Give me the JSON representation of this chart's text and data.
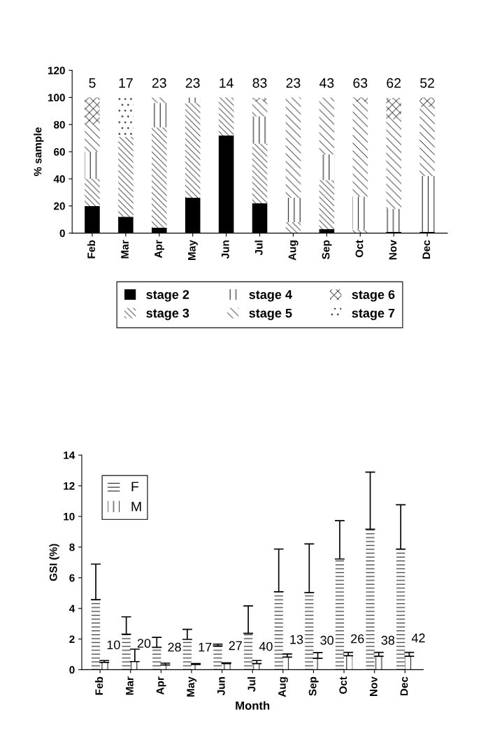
{
  "chart_data": [
    {
      "type": "bar",
      "stacked": true,
      "ylabel": "% sample",
      "categories": [
        "Feb",
        "Mar",
        "Apr",
        "May",
        "Jun",
        "Jul",
        "Aug",
        "Sep",
        "Oct",
        "Nov",
        "Dec"
      ],
      "series": [
        {
          "name": "stage 2",
          "color": "#000000",
          "values": [
            20,
            12,
            4,
            26,
            72,
            22,
            null,
            3,
            null,
            1,
            1
          ]
        },
        {
          "name": "stage 3",
          "color": "#ffffff",
          "values": [
            20,
            59,
            74,
            70,
            28,
            44,
            8,
            36,
            3,
            null,
            null
          ]
        },
        {
          "name": "stage 4",
          "color": "#ffffff",
          "values": [
            20,
            null,
            18,
            4,
            null,
            20,
            18,
            19,
            24,
            17,
            41
          ]
        },
        {
          "name": "stage 5",
          "color": "#ffffff",
          "values": [
            20,
            null,
            4,
            null,
            null,
            11,
            74,
            42,
            70,
            66,
            51
          ]
        },
        {
          "name": "stage 6",
          "color": "#ffffff",
          "values": [
            20,
            null,
            null,
            null,
            null,
            2,
            null,
            null,
            3,
            15,
            7
          ]
        },
        {
          "name": "stage 7",
          "color": "#ffffff",
          "values": [
            null,
            29,
            null,
            null,
            null,
            1,
            null,
            null,
            null,
            1,
            null
          ]
        }
      ],
      "annotations": [
        "5",
        "17",
        "23",
        "23",
        "14",
        "83",
        "23",
        "43",
        "63",
        "62",
        "52"
      ],
      "ylim": [
        0,
        120
      ],
      "yticks": [
        0,
        20,
        40,
        60,
        80,
        100,
        120
      ],
      "grid": false,
      "legend": "bottom"
    },
    {
      "type": "bar",
      "xlabel": "Month",
      "ylabel": "GSI (%)",
      "categories": [
        "Feb",
        "Mar",
        "Apr",
        "May",
        "Jun",
        "Jul",
        "Aug",
        "Sep",
        "Oct",
        "Nov",
        "Dec"
      ],
      "series": [
        {
          "name": "F",
          "color": "#ffffff",
          "values": [
            4.57,
            2.32,
            1.46,
            1.98,
            1.55,
            2.37,
            5.09,
            5.03,
            7.22,
            9.16,
            7.87
          ],
          "errors": [
            [
              4.57,
              6.89
            ],
            [
              2.32,
              3.45
            ],
            [
              1.46,
              2.11
            ],
            [
              1.98,
              2.63
            ],
            [
              1.55,
              1.67
            ],
            [
              2.37,
              4.16
            ],
            [
              5.09,
              7.87
            ],
            [
              5.03,
              8.21
            ],
            [
              7.22,
              9.72
            ],
            [
              9.16,
              12.89
            ],
            [
              7.87,
              10.76
            ]
          ]
        },
        {
          "name": "M",
          "color": "#ffffff",
          "values": [
            0.48,
            0.53,
            0.31,
            0.34,
            0.4,
            0.4,
            0.82,
            0.74,
            0.91,
            0.88,
            0.88
          ],
          "errors": [
            [
              0.48,
              0.6
            ],
            [
              0.53,
              1.34
            ],
            [
              0.31,
              0.43
            ],
            [
              0.34,
              0.4
            ],
            [
              0.4,
              0.45
            ],
            [
              0.4,
              0.6
            ],
            [
              0.82,
              1.03
            ],
            [
              0.74,
              1.12
            ],
            [
              0.91,
              1.13
            ],
            [
              0.88,
              1.13
            ],
            [
              0.88,
              1.13
            ]
          ]
        }
      ],
      "annotations": [
        {
          "text": "10",
          "x": "Feb",
          "y": 1.55
        },
        {
          "text": "20",
          "x": "Mar",
          "y": 1.65
        },
        {
          "text": "28",
          "x": "Apr",
          "y": 1.4
        },
        {
          "text": "17",
          "x": "May",
          "y": 1.4
        },
        {
          "text": "27",
          "x": "Jun",
          "y": 1.5
        },
        {
          "text": "40",
          "x": "Jul",
          "y": 1.45
        },
        {
          "text": "13",
          "x": "Aug",
          "y": 1.9
        },
        {
          "text": "30",
          "x": "Sep",
          "y": 1.85
        },
        {
          "text": "26",
          "x": "Oct",
          "y": 1.95
        },
        {
          "text": "38",
          "x": "Nov",
          "y": 1.85
        },
        {
          "text": "42",
          "x": "Dec",
          "y": 2.0
        }
      ],
      "ylim": [
        0,
        14
      ],
      "yticks": [
        0,
        2,
        4,
        6,
        8,
        10,
        12,
        14
      ],
      "grid": false,
      "legend": "top left"
    }
  ]
}
